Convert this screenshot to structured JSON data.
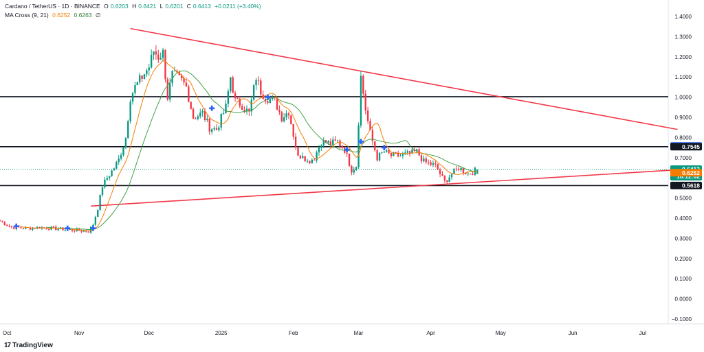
{
  "header": {
    "symbol": "Cardano / TetherUS · 1D · BINANCE",
    "o_label": "O",
    "o": "0.6203",
    "h_label": "H",
    "h": "0.6421",
    "l_label": "L",
    "l": "0.6201",
    "c_label": "C",
    "c": "0.6413",
    "change": "+0.0211 (+3.40%)",
    "indicator": "MA Cross (9, 21)",
    "ma9": "0.6252",
    "ma21": "0.6263",
    "null_symbol": "∅"
  },
  "brand": {
    "logo": "17",
    "name": "TradingView"
  },
  "colors": {
    "up": "#089981",
    "down": "#f23645",
    "ma_fast": "#f57c00",
    "ma_slow": "#43a047",
    "trendline": "#f23645",
    "level": "#131722",
    "cross": "#2962ff",
    "price_tag": "#089981"
  },
  "chart_data": {
    "type": "candlestick",
    "symbol": "ADAUSDT",
    "interval": "1D",
    "ylim": [
      -0.1,
      1.4
    ],
    "y_ticks": [
      -0.1,
      0,
      0.1,
      0.2,
      0.3,
      0.4,
      0.5,
      0.6,
      0.7,
      0.8,
      0.9,
      1.0,
      1.1,
      1.2,
      1.3,
      1.4
    ],
    "y_tick_labels": [
      "−0.1000",
      "0.0000",
      "0.1000",
      "0.2000",
      "0.3000",
      "0.4000",
      "0.5000",
      "0.6000",
      "0.7000",
      "0.8000",
      "0.9000",
      "1.0000",
      "1.1000",
      "1.2000",
      "1.3000",
      "1.4000"
    ],
    "x_range": [
      "2024-09-28",
      "2025-07-12"
    ],
    "x_ticks": [
      {
        "label": "Oct",
        "date": "2024-10-01"
      },
      {
        "label": "Nov",
        "date": "2024-11-01"
      },
      {
        "label": "Dec",
        "date": "2024-12-01"
      },
      {
        "label": "2025",
        "date": "2025-01-01"
      },
      {
        "label": "Feb",
        "date": "2025-02-01"
      },
      {
        "label": "Mar",
        "date": "2025-03-01"
      },
      {
        "label": "Apr",
        "date": "2025-04-01"
      },
      {
        "label": "May",
        "date": "2025-05-01"
      },
      {
        "label": "Jun",
        "date": "2025-06-01"
      },
      {
        "label": "Jul",
        "date": "2025-07-01"
      }
    ],
    "close_anchors": [
      [
        "2024-09-28",
        0.385
      ],
      [
        "2024-10-03",
        0.355
      ],
      [
        "2024-10-10",
        0.35
      ],
      [
        "2024-10-15",
        0.355
      ],
      [
        "2024-10-20",
        0.35
      ],
      [
        "2024-10-25",
        0.345
      ],
      [
        "2024-10-31",
        0.34
      ],
      [
        "2024-11-05",
        0.335
      ],
      [
        "2024-11-07",
        0.37
      ],
      [
        "2024-11-09",
        0.45
      ],
      [
        "2024-11-11",
        0.56
      ],
      [
        "2024-11-13",
        0.6
      ],
      [
        "2024-11-16",
        0.65
      ],
      [
        "2024-11-18",
        0.69
      ],
      [
        "2024-11-21",
        0.8
      ],
      [
        "2024-11-23",
        1.0
      ],
      [
        "2024-11-25",
        1.05
      ],
      [
        "2024-11-28",
        1.1
      ],
      [
        "2024-12-01",
        1.15
      ],
      [
        "2024-12-03",
        1.23
      ],
      [
        "2024-12-05",
        1.2
      ],
      [
        "2024-12-07",
        1.22
      ],
      [
        "2024-12-09",
        1.0
      ],
      [
        "2024-12-11",
        1.11
      ],
      [
        "2024-12-13",
        1.1
      ],
      [
        "2024-12-15",
        1.08
      ],
      [
        "2024-12-17",
        1.05
      ],
      [
        "2024-12-20",
        0.9
      ],
      [
        "2024-12-24",
        0.92
      ],
      [
        "2024-12-27",
        0.85
      ],
      [
        "2024-12-30",
        0.84
      ],
      [
        "2025-01-03",
        0.95
      ],
      [
        "2025-01-05",
        1.1
      ],
      [
        "2025-01-07",
        0.98
      ],
      [
        "2025-01-10",
        0.96
      ],
      [
        "2025-01-13",
        0.92
      ],
      [
        "2025-01-16",
        1.1
      ],
      [
        "2025-01-18",
        1.03
      ],
      [
        "2025-01-20",
        1.0
      ],
      [
        "2025-01-24",
        0.98
      ],
      [
        "2025-01-27",
        0.9
      ],
      [
        "2025-01-30",
        0.93
      ],
      [
        "2025-02-03",
        0.7
      ],
      [
        "2025-02-05",
        0.72
      ],
      [
        "2025-02-07",
        0.68
      ],
      [
        "2025-02-10",
        0.7
      ],
      [
        "2025-02-13",
        0.78
      ],
      [
        "2025-02-17",
        0.77
      ],
      [
        "2025-02-20",
        0.78
      ],
      [
        "2025-02-23",
        0.74
      ],
      [
        "2025-02-26",
        0.64
      ],
      [
        "2025-02-28",
        0.66
      ],
      [
        "2025-03-02",
        1.1
      ],
      [
        "2025-03-04",
        0.94
      ],
      [
        "2025-03-06",
        0.82
      ],
      [
        "2025-03-09",
        0.7
      ],
      [
        "2025-03-12",
        0.73
      ],
      [
        "2025-03-15",
        0.71
      ],
      [
        "2025-03-19",
        0.71
      ],
      [
        "2025-03-23",
        0.72
      ],
      [
        "2025-03-26",
        0.73
      ],
      [
        "2025-03-29",
        0.68
      ],
      [
        "2025-04-03",
        0.66
      ],
      [
        "2025-04-07",
        0.58
      ],
      [
        "2025-04-10",
        0.62
      ],
      [
        "2025-04-13",
        0.65
      ],
      [
        "2025-04-17",
        0.62
      ],
      [
        "2025-04-21",
        0.641
      ]
    ],
    "horizontal_levels": [
      {
        "value": 1.0021,
        "label": "1.0021"
      },
      {
        "value": 0.7545,
        "label": "0.7545"
      },
      {
        "value": 0.5618,
        "label": "0.5618"
      }
    ],
    "trendlines": [
      {
        "from": [
          "2024-11-23",
          1.34
        ],
        "to": [
          "2025-07-16",
          0.84
        ]
      },
      {
        "from": [
          "2024-11-06",
          0.46
        ],
        "to": [
          "2025-07-16",
          0.64
        ]
      }
    ],
    "ma_crosses": [
      {
        "date": "2024-10-05",
        "value": 0.36
      },
      {
        "date": "2024-10-27",
        "value": 0.35
      },
      {
        "date": "2024-11-07",
        "value": 0.35
      },
      {
        "date": "2024-12-28",
        "value": 0.945
      },
      {
        "date": "2025-01-21",
        "value": 1.0
      },
      {
        "date": "2025-02-24",
        "value": 0.74
      },
      {
        "date": "2025-03-02",
        "value": 0.78
      },
      {
        "date": "2025-03-12",
        "value": 0.75
      }
    ],
    "price_tags": [
      {
        "label": "0.7581",
        "value": 0.7581,
        "color": "#2962ff",
        "text_color": "#ffffff"
      },
      {
        "label": "0.7545",
        "value": 0.7545,
        "color": "#131722",
        "text_color": "#ffffff"
      },
      {
        "label": "0.6413",
        "sub": "18:12:02",
        "value": 0.6413,
        "color": "#089981",
        "text_color": "#ffffff"
      },
      {
        "label": "0.6263",
        "value": 0.6263,
        "color": "#43a047",
        "text_color": "#ffffff"
      },
      {
        "label": "0.6252",
        "value": 0.6252,
        "color": "#f57c00",
        "text_color": "#ffffff"
      },
      {
        "label": "0.5618",
        "value": 0.5618,
        "color": "#131722",
        "text_color": "#ffffff"
      }
    ],
    "last_price": 0.6413,
    "countdown": "18:12:02"
  }
}
